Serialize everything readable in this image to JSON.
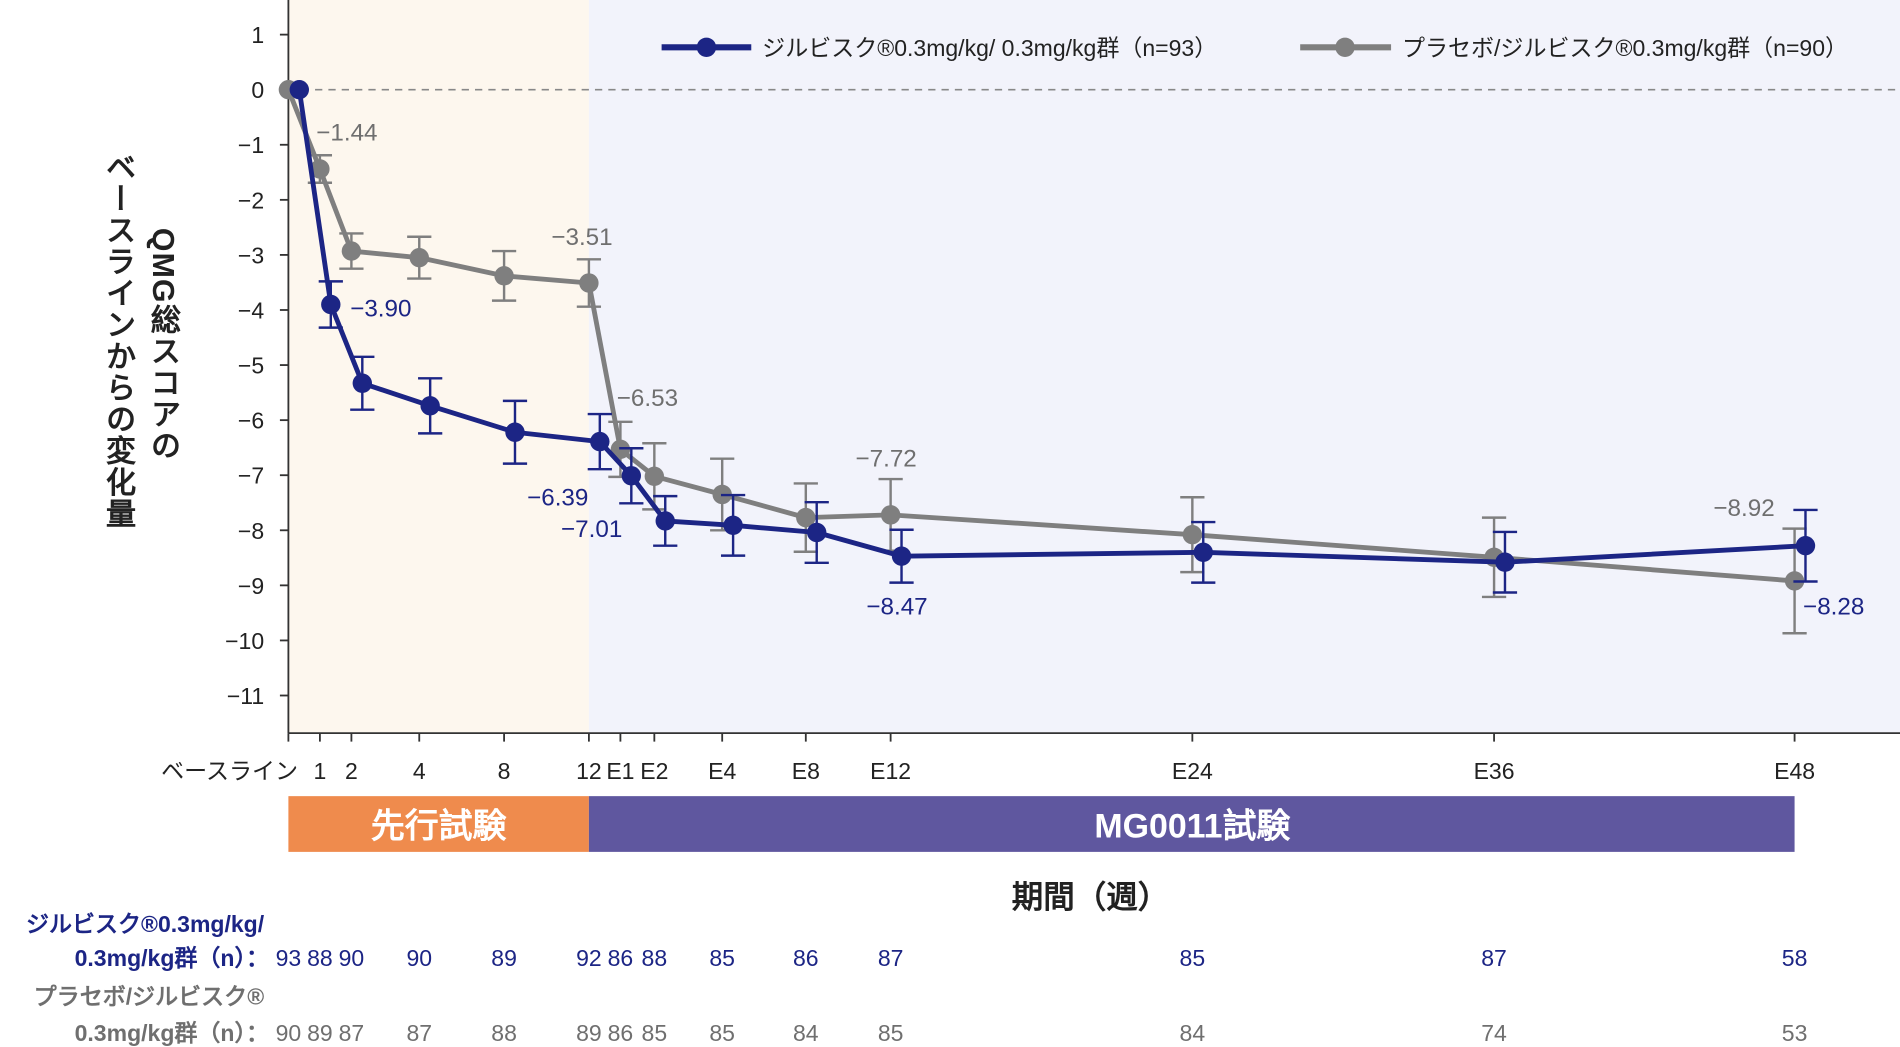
{
  "chart_data": {
    "type": "line",
    "ylabel_line1": "QMG総スコアの",
    "ylabel_line2": "ベースラインからの変化量",
    "xlabel": "期間（週）",
    "ylim": [
      -11.5,
      1.5
    ],
    "yticks": [
      1,
      0,
      -1,
      -2,
      -3,
      -4,
      -5,
      -6,
      -7,
      -8,
      -9,
      -10,
      -11
    ],
    "ytick_labels": [
      "1",
      "0",
      "−1",
      "−2",
      "−3",
      "−4",
      "−5",
      "−6",
      "−7",
      "−8",
      "−9",
      "−10",
      "−11"
    ],
    "categories": [
      "ベースライン",
      "1",
      "2",
      "4",
      "8",
      "12",
      "E1",
      "E2",
      "E4",
      "E8",
      "E12",
      "E24",
      "E36",
      "E48"
    ],
    "reference_line": 0,
    "phases": [
      {
        "label": "先行試験",
        "color": "#ef8b4d",
        "background": "#fdf7ee"
      },
      {
        "label": "MG0011試験",
        "color": "#5f579f",
        "background": "#f2f3fb"
      }
    ],
    "legend_position": "top-right",
    "series": [
      {
        "name": "ジルビスク®0.3mg/kg/ 0.3mg/kg群（n=93）",
        "color": "#1c2585",
        "values": [
          0,
          -3.9,
          -5.33,
          -5.74,
          -6.22,
          -6.39,
          -7.01,
          -7.83,
          -7.91,
          -8.04,
          -8.47,
          -8.4,
          -8.58,
          -8.28
        ],
        "error": [
          0,
          0.42,
          0.48,
          0.5,
          0.57,
          0.5,
          0.5,
          0.45,
          0.55,
          0.55,
          0.48,
          0.55,
          0.55,
          0.65
        ],
        "data_labels": {
          "1": "−3.90",
          "5": "−6.39",
          "6": "−7.01",
          "10": "−8.47",
          "13": "−8.28"
        },
        "n": [
          "93",
          "88",
          "90",
          "90",
          "89",
          "92",
          "86",
          "88",
          "85",
          "86",
          "87",
          "85",
          "87",
          "58"
        ]
      },
      {
        "name": "プラセボ/ジルビスク®0.3mg/kg群（n=90）",
        "color": "#7f7f7f",
        "values": [
          0,
          -1.44,
          -2.93,
          -3.05,
          -3.38,
          -3.51,
          -6.53,
          -7.02,
          -7.35,
          -7.77,
          -7.72,
          -8.08,
          -8.49,
          -8.92
        ],
        "error": [
          0,
          0.25,
          0.32,
          0.38,
          0.45,
          0.43,
          0.5,
          0.6,
          0.65,
          0.62,
          0.65,
          0.68,
          0.72,
          0.95
        ],
        "data_labels": {
          "1": "−1.44",
          "5": "−3.51",
          "6": "−6.53",
          "10": "−7.72",
          "13": "−8.92"
        },
        "n": [
          "90",
          "89",
          "87",
          "87",
          "88",
          "89",
          "86",
          "85",
          "85",
          "84",
          "85",
          "84",
          "74",
          "53"
        ]
      }
    ]
  },
  "n_table": {
    "row1_label_line1": "ジルビスク®0.3mg/kg/",
    "row1_label_line2": "0.3mg/kg群（n）：",
    "row2_label_line1": "プラセボ/ジルビスク®",
    "row2_label_line2": "0.3mg/kg群（n）："
  }
}
